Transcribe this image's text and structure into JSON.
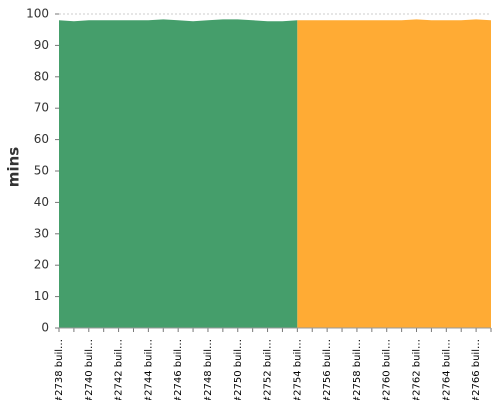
{
  "chart_data": {
    "type": "area",
    "y_label": "mins",
    "categories": [
      "#2738 buil…",
      null,
      "#2740 buil…",
      null,
      "#2742 buil…",
      null,
      "#2744 buil…",
      null,
      "#2746 buil…",
      null,
      "#2748 buil…",
      null,
      "#2750 buil…",
      null,
      "#2752 buil…",
      null,
      "#2754 buil…",
      null,
      "#2756 buil…",
      null,
      "#2758 buil…",
      null,
      "#2760 buil…",
      null,
      "#2762 buil…",
      null,
      "#2764 buil…",
      null,
      "#2766 buil…",
      null
    ],
    "series": [
      {
        "color": "#459e6b",
        "values": [
          98,
          97.7,
          98,
          98,
          98,
          98,
          98,
          98.3,
          98,
          97.7,
          98,
          98.3,
          98.3,
          98,
          97.7,
          97.7,
          98,
          null,
          null,
          null,
          null,
          null,
          null,
          null,
          null,
          null,
          null,
          null,
          null,
          null
        ]
      },
      {
        "color": "#ffab34",
        "values": [
          null,
          null,
          null,
          null,
          null,
          null,
          null,
          null,
          null,
          null,
          null,
          null,
          null,
          null,
          null,
          null,
          98,
          98,
          98,
          98,
          98,
          98,
          98,
          98,
          98.3,
          98,
          98,
          98,
          98.3,
          98
        ]
      }
    ],
    "ylim": [
      0,
      100
    ],
    "yticks": [
      0,
      10,
      20,
      30,
      40,
      50,
      60,
      70,
      80,
      90,
      100
    ],
    "grid": true
  }
}
